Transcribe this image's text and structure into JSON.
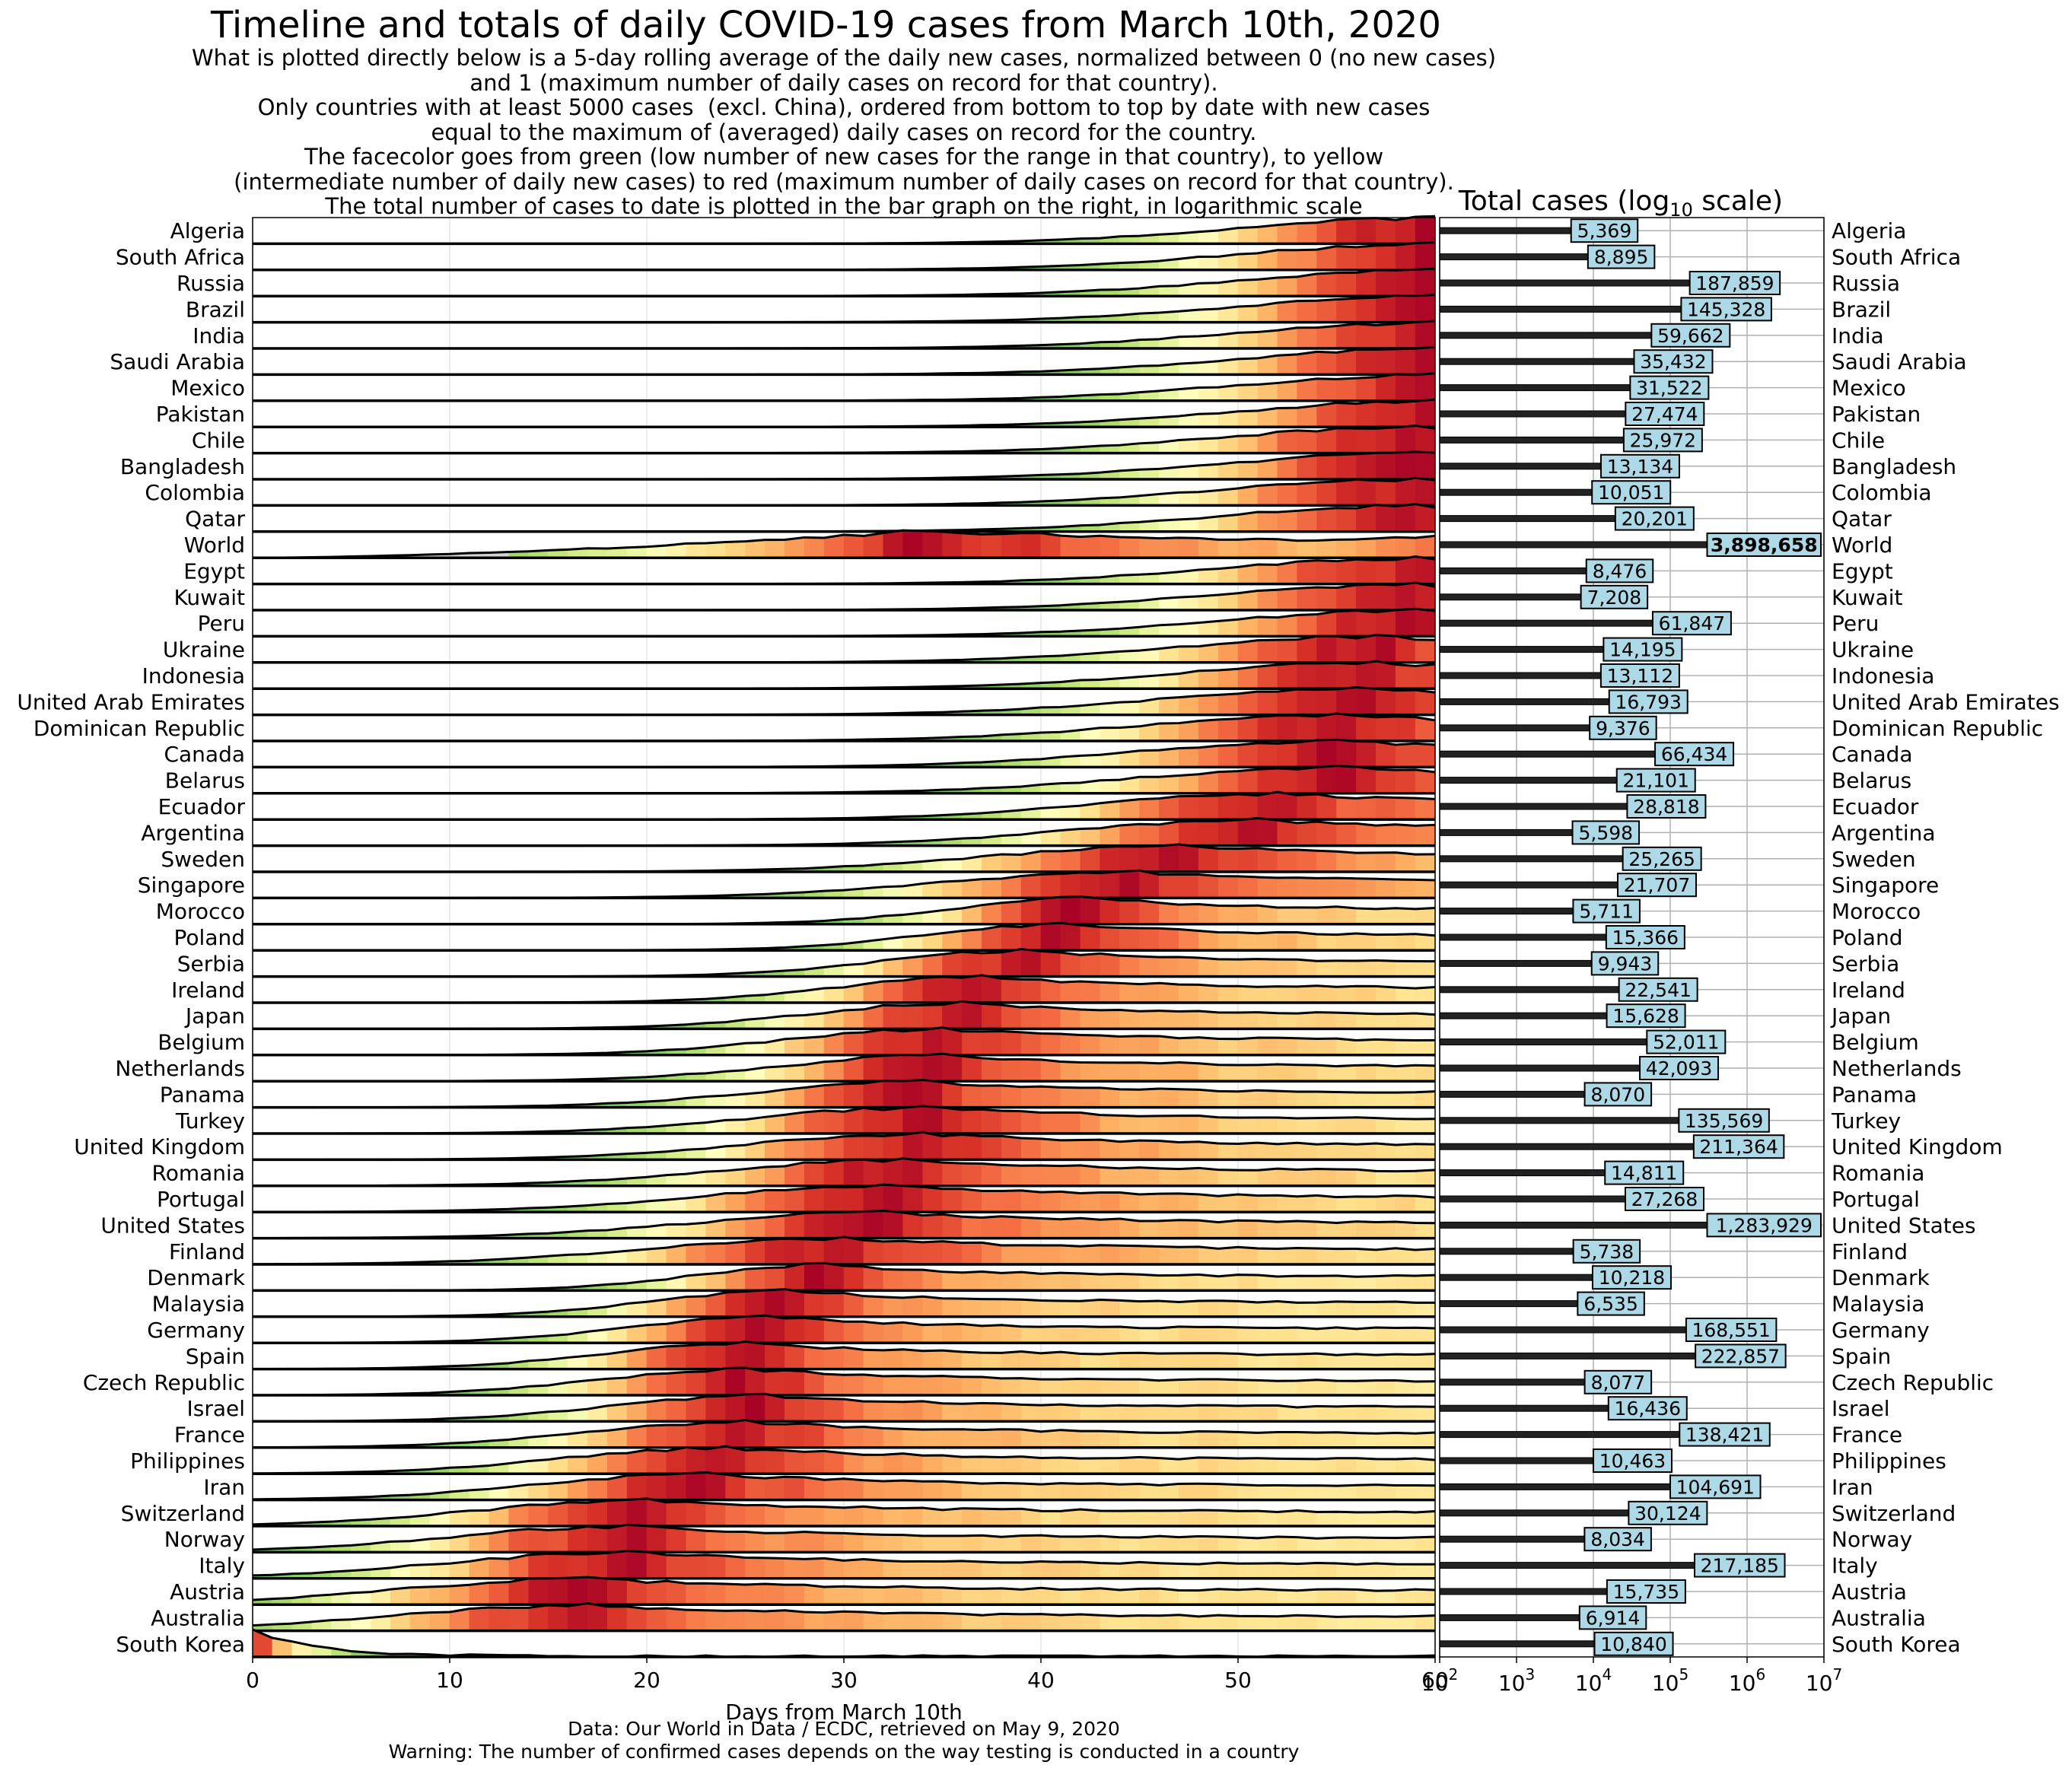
{
  "title": "Timeline and totals of daily COVID-19 cases from March 10th, 2020",
  "subtitle_lines": [
    "What is plotted directly below is a 5-day rolling average of the daily new cases, normalized between 0 (no new cases)",
    "and 1 (maximum number of daily cases on record for that country).",
    "Only countries with at least 5000 cases  (excl. China), ordered from bottom to top by date with new cases",
    "equal to the maximum of (averaged) daily cases on record for the country.",
    "The facecolor goes from green (low number of new cases for the range in that country), to yellow",
    "(intermediate number of daily new cases) to red (maximum number of daily cases on record for that country).",
    "The total number of cases to date is plotted in the bar graph on the right, in logarithmic scale"
  ],
  "right_title_base": "Total cases (log",
  "right_title_sub": "10",
  "right_title_tail": " scale)",
  "footer_lines": [
    "Data: Our World in Data / ECDC, retrieved on May 9, 2020",
    "Warning: The number of confirmed cases depends on the way testing is conducted in a country"
  ],
  "colors": {
    "world_fill": "#d3d3d3",
    "bar_label_bg": "#add8e6",
    "colormap": [
      "#1a9850",
      "#66bd63",
      "#a6d96a",
      "#d9ef8b",
      "#ffffbf",
      "#fee08b",
      "#fdae61",
      "#f46d43",
      "#d73027",
      "#a50026"
    ]
  },
  "chart_data": [
    {
      "type": "area",
      "description_kind": "ridgeline",
      "xlabel": "Days from March 10th",
      "xlim": [
        0,
        60
      ],
      "ylim_per_row": [
        0,
        1
      ],
      "xticks": [
        0,
        10,
        20,
        30,
        40,
        50,
        60
      ],
      "grid": true,
      "rows": [
        {
          "name": "Algeria",
          "peak_day": 60
        },
        {
          "name": "South Africa",
          "peak_day": 60
        },
        {
          "name": "Russia",
          "peak_day": 60
        },
        {
          "name": "Brazil",
          "peak_day": 60
        },
        {
          "name": "India",
          "peak_day": 60
        },
        {
          "name": "Saudi Arabia",
          "peak_day": 60
        },
        {
          "name": "Mexico",
          "peak_day": 60
        },
        {
          "name": "Pakistan",
          "peak_day": 60
        },
        {
          "name": "Chile",
          "peak_day": 59
        },
        {
          "name": "Bangladesh",
          "peak_day": 59
        },
        {
          "name": "Colombia",
          "peak_day": 59
        },
        {
          "name": "Qatar",
          "peak_day": 59
        },
        {
          "name": "World",
          "peak_day": 33
        },
        {
          "name": "Egypt",
          "peak_day": 59
        },
        {
          "name": "Kuwait",
          "peak_day": 59
        },
        {
          "name": "Peru",
          "peak_day": 59
        },
        {
          "name": "Ukraine",
          "peak_day": 57
        },
        {
          "name": "Indonesia",
          "peak_day": 57
        },
        {
          "name": "United Arab Emirates",
          "peak_day": 56
        },
        {
          "name": "Dominican Republic",
          "peak_day": 55
        },
        {
          "name": "Canada",
          "peak_day": 55
        },
        {
          "name": "Belarus",
          "peak_day": 55
        },
        {
          "name": "Ecuador",
          "peak_day": 52
        },
        {
          "name": "Argentina",
          "peak_day": 51
        },
        {
          "name": "Sweden",
          "peak_day": 47
        },
        {
          "name": "Singapore",
          "peak_day": 45
        },
        {
          "name": "Morocco",
          "peak_day": 42
        },
        {
          "name": "Poland",
          "peak_day": 41
        },
        {
          "name": "Serbia",
          "peak_day": 39
        },
        {
          "name": "Ireland",
          "peak_day": 37
        },
        {
          "name": "Japan",
          "peak_day": 36
        },
        {
          "name": "Belgium",
          "peak_day": 35
        },
        {
          "name": "Netherlands",
          "peak_day": 35
        },
        {
          "name": "Panama",
          "peak_day": 34
        },
        {
          "name": "Turkey",
          "peak_day": 34
        },
        {
          "name": "United Kingdom",
          "peak_day": 34
        },
        {
          "name": "Romania",
          "peak_day": 33
        },
        {
          "name": "Portugal",
          "peak_day": 32
        },
        {
          "name": "United States",
          "peak_day": 32
        },
        {
          "name": "Finland",
          "peak_day": 30
        },
        {
          "name": "Denmark",
          "peak_day": 29
        },
        {
          "name": "Malaysia",
          "peak_day": 27
        },
        {
          "name": "Germany",
          "peak_day": 26
        },
        {
          "name": "Spain",
          "peak_day": 25
        },
        {
          "name": "Czech Republic",
          "peak_day": 25
        },
        {
          "name": "Israel",
          "peak_day": 26
        },
        {
          "name": "France",
          "peak_day": 25
        },
        {
          "name": "Philippines",
          "peak_day": 24
        },
        {
          "name": "Iran",
          "peak_day": 23
        },
        {
          "name": "Switzerland",
          "peak_day": 20
        },
        {
          "name": "Norway",
          "peak_day": 19
        },
        {
          "name": "Italy",
          "peak_day": 19
        },
        {
          "name": "Austria",
          "peak_day": 17
        },
        {
          "name": "Australia",
          "peak_day": 17
        },
        {
          "name": "South Korea",
          "peak_day": 0
        }
      ]
    },
    {
      "type": "bar",
      "orientation": "horizontal",
      "xscale": "log",
      "xlim": [
        100,
        10000000
      ],
      "xtick_bases": [
        "10",
        "10",
        "10",
        "10",
        "10",
        "10"
      ],
      "xtick_exponents": [
        "2",
        "3",
        "4",
        "5",
        "6",
        "7"
      ],
      "grid": true,
      "categories": [
        "Algeria",
        "South Africa",
        "Russia",
        "Brazil",
        "India",
        "Saudi Arabia",
        "Mexico",
        "Pakistan",
        "Chile",
        "Bangladesh",
        "Colombia",
        "Qatar",
        "World",
        "Egypt",
        "Kuwait",
        "Peru",
        "Ukraine",
        "Indonesia",
        "United Arab Emirates",
        "Dominican Republic",
        "Canada",
        "Belarus",
        "Ecuador",
        "Argentina",
        "Sweden",
        "Singapore",
        "Morocco",
        "Poland",
        "Serbia",
        "Ireland",
        "Japan",
        "Belgium",
        "Netherlands",
        "Panama",
        "Turkey",
        "United Kingdom",
        "Romania",
        "Portugal",
        "United States",
        "Finland",
        "Denmark",
        "Malaysia",
        "Germany",
        "Spain",
        "Czech Republic",
        "Israel",
        "France",
        "Philippines",
        "Iran",
        "Switzerland",
        "Norway",
        "Italy",
        "Austria",
        "Australia",
        "South Korea"
      ],
      "values": [
        5369,
        8895,
        187859,
        145328,
        59662,
        35432,
        31522,
        27474,
        25972,
        13134,
        10051,
        20201,
        3898658,
        8476,
        7208,
        61847,
        14195,
        13112,
        16793,
        9376,
        66434,
        21101,
        28818,
        5598,
        25265,
        21707,
        5711,
        15366,
        9943,
        22541,
        15628,
        52011,
        42093,
        8070,
        135569,
        211364,
        14811,
        27268,
        1283929,
        5738,
        10218,
        6535,
        168551,
        222857,
        8077,
        16436,
        138421,
        10463,
        104691,
        30124,
        8034,
        217185,
        15735,
        6914,
        10840
      ],
      "value_labels": [
        "5,369",
        "8,895",
        "187,859",
        "145,328",
        "59,662",
        "35,432",
        "31,522",
        "27,474",
        "25,972",
        "13,134",
        "10,051",
        "20,201",
        "3,898,658",
        "8,476",
        "7,208",
        "61,847",
        "14,195",
        "13,112",
        "16,793",
        "9,376",
        "66,434",
        "21,101",
        "28,818",
        "5,598",
        "25,265",
        "21,707",
        "5,711",
        "15,366",
        "9,943",
        "22,541",
        "15,628",
        "52,011",
        "42,093",
        "8,070",
        "135,569",
        "211,364",
        "14,811",
        "27,268",
        "1,283,929",
        "5,738",
        "10,218",
        "6,535",
        "168,551",
        "222,857",
        "8,077",
        "16,436",
        "138,421",
        "10,463",
        "104,691",
        "30,124",
        "8,034",
        "217,185",
        "15,735",
        "6,914",
        "10,840"
      ]
    }
  ]
}
